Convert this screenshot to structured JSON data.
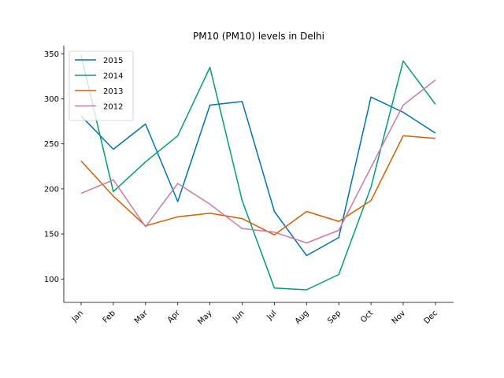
{
  "chart_data": {
    "type": "line",
    "title": "PM10 (PM10) levels in Delhi",
    "xlabel": "",
    "ylabel": "",
    "categories": [
      "Jan",
      "Feb",
      "Mar",
      "Apr",
      "May",
      "Jun",
      "Jul",
      "Aug",
      "Sep",
      "Oct",
      "Nov",
      "Dec"
    ],
    "yticks": [
      100,
      150,
      200,
      250,
      300,
      350
    ],
    "ylim": [
      74,
      359
    ],
    "grid": false,
    "legend_position": "top-left",
    "series": [
      {
        "name": "2015",
        "color": "#0072b2",
        "values": [
          281,
          244,
          272,
          186,
          293,
          297,
          175,
          126,
          146,
          302,
          285,
          262
        ]
      },
      {
        "name": "2014",
        "color": "#009e73",
        "values": [
          348,
          197,
          230,
          259,
          335,
          187,
          90,
          88,
          105,
          202,
          342,
          294
        ]
      },
      {
        "name": "2013",
        "color": "#d55e00",
        "values": [
          231,
          192,
          159,
          169,
          173,
          167,
          149,
          175,
          164,
          187,
          259,
          256
        ]
      },
      {
        "name": "2012",
        "color": "#cc79a7",
        "values": [
          195,
          210,
          158,
          206,
          183,
          156,
          152,
          140,
          154,
          224,
          293,
          321
        ]
      }
    ]
  }
}
